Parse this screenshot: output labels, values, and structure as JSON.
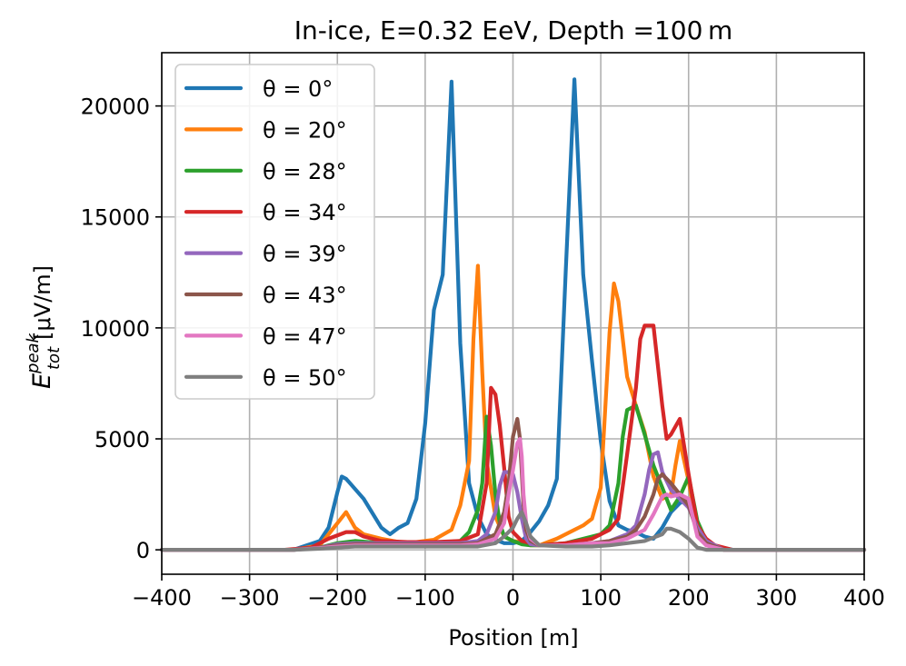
{
  "chart_data": {
    "type": "line",
    "title": "In-ice, E=0.32 EeV, Depth =100 m",
    "xlabel": "Position [m]",
    "ylabel_main": "E",
    "ylabel_sup": "peak",
    "ylabel_sub": "tot",
    "ylabel_unit": "[μV/m]",
    "xlim": [
      -400,
      400
    ],
    "ylim": [
      -1100,
      22400
    ],
    "xticks": [
      -400,
      -300,
      -200,
      -100,
      0,
      100,
      200,
      300,
      400
    ],
    "xtick_labels": [
      "−400",
      "−300",
      "−200",
      "−100",
      "0",
      "100",
      "200",
      "300",
      "400"
    ],
    "yticks": [
      0,
      5000,
      10000,
      15000,
      20000
    ],
    "ytick_labels": [
      "0",
      "5000",
      "10000",
      "15000",
      "20000"
    ],
    "grid": true,
    "legend_position": "top-left",
    "series": [
      {
        "name": "θ = 0°",
        "color": "#1f77b4",
        "x": [
          -400,
          -250,
          -220,
          -210,
          -200,
          -195,
          -190,
          -170,
          -150,
          -140,
          -130,
          -120,
          -110,
          -100,
          -90,
          -80,
          -70,
          -60,
          -50,
          -40,
          -30,
          -20,
          -10,
          0,
          10,
          20,
          30,
          40,
          50,
          60,
          70,
          80,
          90,
          100,
          110,
          120,
          130,
          140,
          150,
          160,
          170,
          180,
          190,
          200,
          210,
          220,
          250,
          400
        ],
        "y": [
          0,
          0,
          400,
          1000,
          2600,
          3300,
          3200,
          2300,
          1000,
          700,
          1000,
          1200,
          2300,
          5700,
          10800,
          12400,
          21100,
          9300,
          3000,
          1500,
          700,
          450,
          300,
          300,
          400,
          800,
          1300,
          2000,
          3200,
          12500,
          21200,
          12400,
          8500,
          4900,
          2200,
          1100,
          900,
          800,
          600,
          500,
          1000,
          1700,
          2100,
          2300,
          1000,
          250,
          0,
          0
        ]
      },
      {
        "name": "θ = 20°",
        "color": "#ff7f0e",
        "x": [
          -400,
          -250,
          -220,
          -200,
          -190,
          -180,
          -170,
          -150,
          -130,
          -110,
          -90,
          -70,
          -60,
          -50,
          -45,
          -40,
          -35,
          -30,
          -20,
          -10,
          0,
          10,
          20,
          30,
          50,
          70,
          80,
          90,
          100,
          110,
          115,
          120,
          130,
          140,
          150,
          160,
          170,
          180,
          185,
          190,
          200,
          210,
          220,
          240,
          400
        ],
        "y": [
          0,
          0,
          200,
          1200,
          1700,
          1000,
          700,
          500,
          350,
          350,
          450,
          900,
          2000,
          4000,
          9500,
          12800,
          8000,
          4000,
          1500,
          600,
          400,
          350,
          200,
          200,
          500,
          900,
          1100,
          1400,
          2800,
          9800,
          12000,
          11200,
          7800,
          6500,
          5300,
          3300,
          2300,
          2500,
          3800,
          4900,
          3100,
          900,
          400,
          0,
          0
        ]
      },
      {
        "name": "θ = 28°",
        "color": "#2ca02c",
        "x": [
          -400,
          -250,
          -220,
          -200,
          -180,
          -150,
          -120,
          -90,
          -60,
          -50,
          -40,
          -35,
          -30,
          -25,
          -20,
          -15,
          -10,
          0,
          10,
          20,
          30,
          60,
          90,
          100,
          110,
          120,
          125,
          130,
          140,
          150,
          160,
          170,
          180,
          190,
          200,
          210,
          220,
          240,
          400
        ],
        "y": [
          0,
          0,
          100,
          300,
          400,
          300,
          300,
          300,
          400,
          800,
          1800,
          3000,
          6000,
          4700,
          2500,
          1200,
          600,
          400,
          250,
          200,
          200,
          300,
          600,
          700,
          1100,
          3000,
          5100,
          6300,
          6500,
          5200,
          3800,
          2800,
          1800,
          2400,
          3300,
          1300,
          400,
          0,
          0
        ]
      },
      {
        "name": "θ = 34°",
        "color": "#d62728",
        "x": [
          -400,
          -260,
          -230,
          -210,
          -190,
          -180,
          -170,
          -150,
          -120,
          -90,
          -60,
          -40,
          -30,
          -25,
          -20,
          -15,
          -10,
          -5,
          0,
          10,
          20,
          30,
          60,
          90,
          110,
          120,
          130,
          140,
          145,
          150,
          160,
          170,
          175,
          180,
          190,
          200,
          210,
          220,
          230,
          250,
          400
        ],
        "y": [
          0,
          0,
          100,
          500,
          800,
          800,
          600,
          400,
          350,
          350,
          400,
          700,
          3000,
          7300,
          7000,
          5600,
          3700,
          1500,
          800,
          400,
          300,
          200,
          300,
          500,
          900,
          1400,
          4300,
          7300,
          9500,
          10100,
          10100,
          6500,
          5000,
          5200,
          5900,
          3400,
          1100,
          500,
          200,
          0,
          0
        ]
      },
      {
        "name": "θ = 39°",
        "color": "#9467bd",
        "x": [
          -400,
          -250,
          -220,
          -200,
          -180,
          -150,
          -120,
          -90,
          -60,
          -40,
          -30,
          -20,
          -15,
          -10,
          -5,
          0,
          5,
          10,
          15,
          20,
          30,
          60,
          90,
          110,
          130,
          140,
          150,
          155,
          160,
          165,
          170,
          180,
          190,
          200,
          210,
          220,
          240,
          400
        ],
        "y": [
          0,
          0,
          100,
          250,
          300,
          300,
          300,
          300,
          300,
          400,
          700,
          1700,
          2900,
          3500,
          3500,
          3400,
          2600,
          1400,
          500,
          250,
          200,
          200,
          300,
          400,
          700,
          1100,
          2500,
          3600,
          4300,
          4400,
          3500,
          2700,
          2300,
          1900,
          1000,
          400,
          0,
          0
        ]
      },
      {
        "name": "θ = 43°",
        "color": "#8c564b",
        "x": [
          -400,
          -250,
          -220,
          -200,
          -180,
          -150,
          -120,
          -90,
          -60,
          -40,
          -20,
          -10,
          -5,
          0,
          5,
          8,
          12,
          15,
          20,
          30,
          60,
          90,
          110,
          130,
          140,
          150,
          160,
          165,
          170,
          180,
          190,
          200,
          210,
          220,
          240,
          400
        ],
        "y": [
          0,
          0,
          100,
          200,
          250,
          250,
          250,
          250,
          250,
          300,
          700,
          1700,
          3000,
          5100,
          5900,
          5000,
          2000,
          900,
          400,
          200,
          200,
          300,
          400,
          600,
          900,
          1500,
          2500,
          3200,
          3400,
          3000,
          2500,
          2000,
          800,
          300,
          0,
          0
        ]
      },
      {
        "name": "θ = 47°",
        "color": "#e377c2",
        "x": [
          -400,
          -250,
          -220,
          -200,
          -180,
          -150,
          -120,
          -90,
          -60,
          -40,
          -20,
          -10,
          -5,
          0,
          5,
          8,
          10,
          12,
          15,
          20,
          30,
          60,
          90,
          110,
          130,
          150,
          160,
          170,
          175,
          180,
          190,
          200,
          210,
          220,
          240,
          400
        ],
        "y": [
          0,
          0,
          80,
          150,
          200,
          200,
          200,
          200,
          200,
          250,
          500,
          1200,
          2500,
          3600,
          4800,
          5000,
          4200,
          2500,
          1200,
          500,
          200,
          200,
          300,
          300,
          500,
          900,
          1600,
          2400,
          2500,
          2400,
          2500,
          2300,
          600,
          200,
          0,
          0
        ]
      },
      {
        "name": "θ = 50°",
        "color": "#7f7f7f",
        "x": [
          -400,
          -250,
          -220,
          -200,
          -180,
          -150,
          -120,
          -90,
          -60,
          -40,
          -20,
          -10,
          0,
          5,
          10,
          15,
          20,
          30,
          60,
          90,
          110,
          130,
          150,
          160,
          170,
          175,
          180,
          190,
          200,
          210,
          220,
          240,
          400
        ],
        "y": [
          0,
          0,
          50,
          100,
          150,
          150,
          150,
          150,
          150,
          150,
          300,
          600,
          1000,
          1400,
          1700,
          1200,
          600,
          200,
          150,
          150,
          200,
          300,
          400,
          550,
          700,
          950,
          950,
          800,
          500,
          100,
          0,
          0,
          0
        ]
      }
    ]
  }
}
